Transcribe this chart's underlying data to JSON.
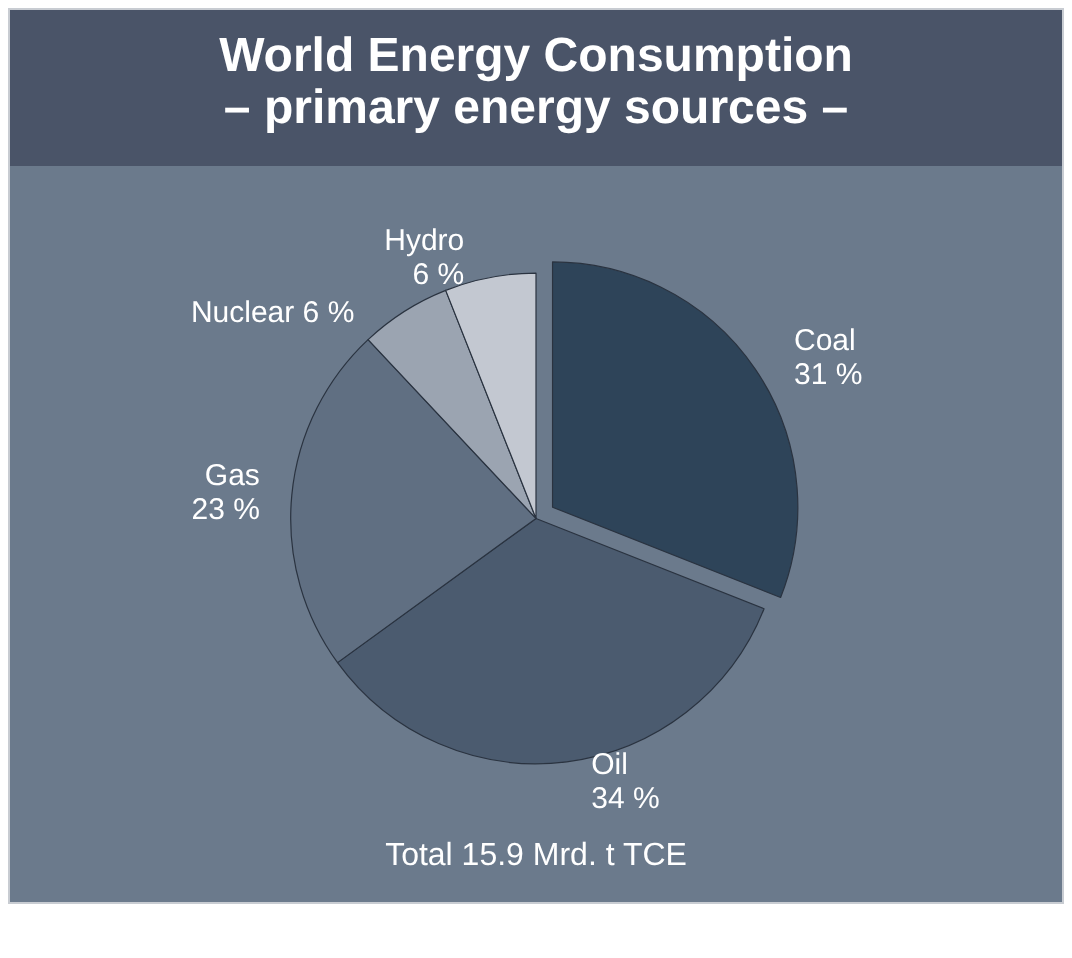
{
  "chart_data": {
    "type": "pie",
    "title": "World Energy Consumption",
    "subtitle": "– primary energy sources –",
    "categories": [
      "Coal",
      "Oil",
      "Gas",
      "Nuclear",
      "Hydro"
    ],
    "values": [
      31,
      34,
      23,
      6,
      6
    ],
    "value_labels": [
      "31 %",
      "34 %",
      "23 %",
      "6 %",
      "6 %"
    ],
    "colors": [
      "#2e4459",
      "#4b5b6f",
      "#606f82",
      "#9ba4b1",
      "#c3c8d1"
    ],
    "annotations": [
      "Total 15.9 Mrd. t TCE"
    ]
  }
}
